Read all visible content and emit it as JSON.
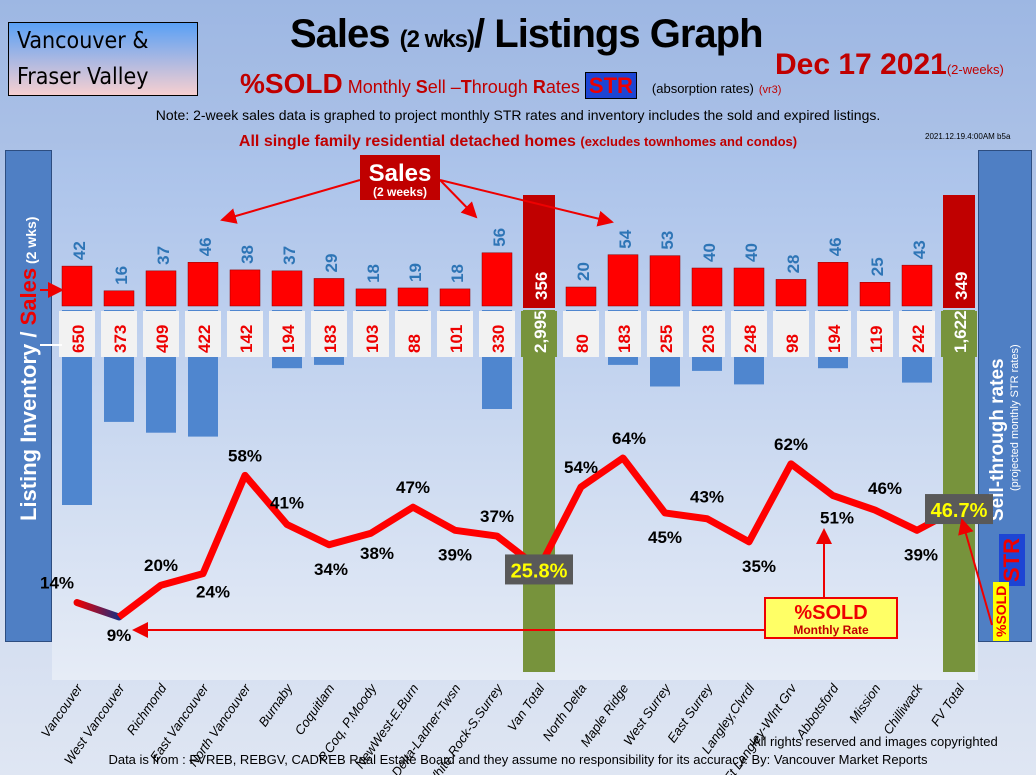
{
  "header": {
    "region_line1": "Vancouver &",
    "region_line2": "Fraser Valley",
    "title_main": "Sales",
    "title_small": "(2 wks)",
    "title_rest": "/ Listings Graph",
    "date": "Dec  17  2021",
    "date_note": "(2-weeks)",
    "sold_label": "%SOLD",
    "str_desc_1": "Monthly ",
    "s": "S",
    "ell": "ell –",
    "t": "T",
    "hrough": "hrough ",
    "r": "R",
    "ates": "ates",
    "str_badge": "STR",
    "absorption": "(absorption rates)",
    "version": "(vr3)",
    "note": "Note: 2-week sales data is graphed to project monthly STR rates and inventory includes the sold and expired listings.",
    "single_family": "All single family residential detached homes",
    "single_family_note": "(excludes townhomes and condos)",
    "stamp": "2021.12.19.4:00AM b5a"
  },
  "left_axis": {
    "part1": "Listing Inventory / ",
    "part2": "Sales",
    "part3": " (2 wks)"
  },
  "right_axis": {
    "title": "Sell-through rates",
    "subtitle": "(projected monthly STR rates)",
    "str": "STR",
    "sold": "%SOLD"
  },
  "callouts": {
    "sales": "Sales",
    "sales_sub": "(2 weeks)",
    "sold": "%SOLD",
    "sold_sub": "Monthly Rate"
  },
  "footer": {
    "rights": "All rights reserved and  images copyrighted",
    "source": "Data is from : FVREB, REBGV, CADREB Real Estate Board and they assume no responsibility for its accuracy. By: Vancouver Market Reports"
  },
  "colors": {
    "sales": "#ff0000",
    "listings": "#4f86cf",
    "totals": "#77933c",
    "line": "#ff0000"
  },
  "chart_data": {
    "type": "bar",
    "categories": [
      "Vancouver",
      "West Vancouver",
      "Richmond",
      "East Vancouver",
      "North Vancouver",
      "Burnaby",
      "Coquitlam",
      "P.Coq, P.Moody",
      "NewWest-E.Burn",
      "Delta-Ladner-Twsn",
      "White Rock-S.Surrey",
      "Van Total",
      "North Delta",
      "Maple Ridge",
      "West Surrey",
      "East Surrey",
      "Langley,Clvrdl",
      "Ft Langley-Wlnt Grv",
      "Abbotsford",
      "Mission",
      "Chilliwack",
      "FV Total"
    ],
    "series": [
      {
        "name": "Sales (2 weeks)",
        "values": [
          42,
          16,
          37,
          46,
          38,
          37,
          29,
          18,
          19,
          18,
          56,
          356,
          20,
          54,
          53,
          40,
          40,
          28,
          46,
          25,
          43,
          349
        ],
        "labels": [
          "42",
          "16",
          "37",
          "46",
          "38",
          "37",
          "29",
          "18",
          "19",
          "18",
          "56",
          "356",
          "20",
          "54",
          "53",
          "40",
          "40",
          "28",
          "46",
          "25",
          "43",
          "349"
        ]
      },
      {
        "name": "Listing Inventory",
        "values": [
          650,
          373,
          409,
          422,
          142,
          194,
          183,
          103,
          88,
          101,
          330,
          2995,
          80,
          183,
          255,
          203,
          248,
          98,
          194,
          119,
          242,
          1622
        ],
        "labels": [
          "650",
          "373",
          "409",
          "422",
          "142",
          "194",
          "183",
          "103",
          "88",
          "101",
          "330",
          "2,995",
          "80",
          "183",
          "255",
          "203",
          "248",
          "98",
          "194",
          "119",
          "242",
          "1,622"
        ]
      },
      {
        "name": "%SOLD Monthly Rate",
        "type": "line",
        "values": [
          14,
          9,
          20,
          24,
          58,
          41,
          34,
          38,
          47,
          39,
          37,
          25.8,
          54,
          64,
          45,
          43,
          35,
          62,
          51,
          46,
          39,
          46.7
        ],
        "labels": [
          "14%",
          "9%",
          "20%",
          "24%",
          "58%",
          "41%",
          "34%",
          "38%",
          "47%",
          "39%",
          "37%",
          "25.8%",
          "54%",
          "64%",
          "45%",
          "43%",
          "35%",
          "62%",
          "51%",
          "46%",
          "39%",
          "46.7%"
        ]
      }
    ],
    "totals": [
      "Van Total",
      "FV Total"
    ]
  }
}
